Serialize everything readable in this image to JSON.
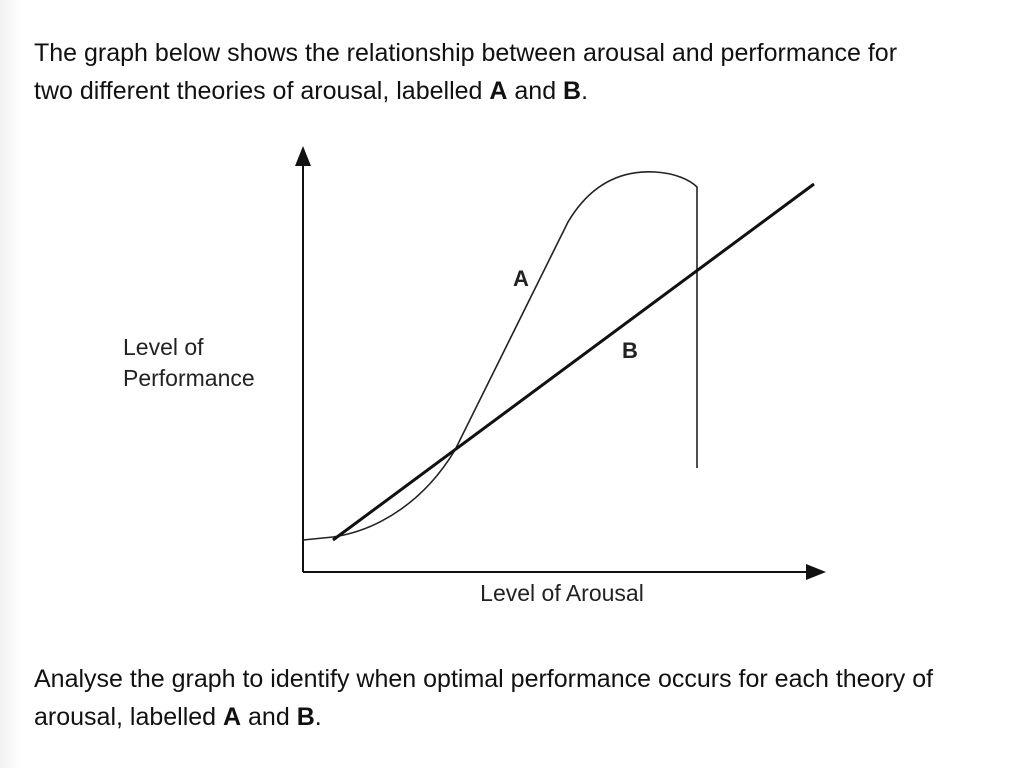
{
  "intro": [
    "The graph below shows the relationship between arousal and performance for two different theories of arousal, labelled ",
    "A",
    " and ",
    "B",
    "."
  ],
  "diagram": {
    "y_label": [
      "Level of",
      "Performance"
    ],
    "x_label": "Level of Arousal",
    "curve_a_label": "A",
    "curve_b_label": "B"
  },
  "question": [
    "Analyse the graph to identify when optimal performance occurs for each theory of arousal, labelled ",
    "A",
    " and ",
    "B",
    "."
  ]
}
